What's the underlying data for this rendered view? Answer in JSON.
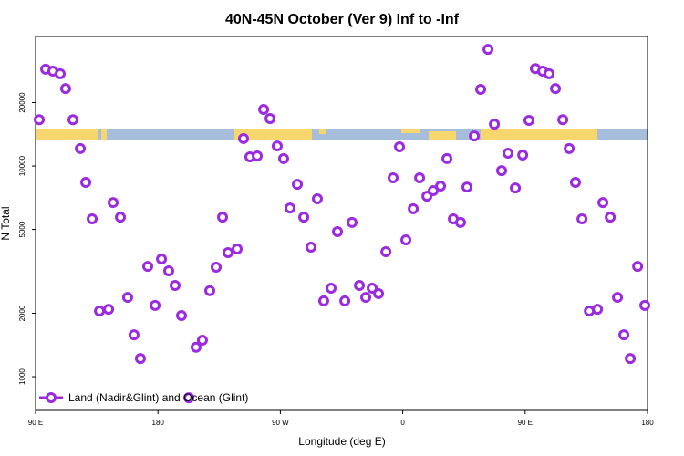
{
  "chart_data": {
    "type": "scatter",
    "title": "40N-45N October (Ver 9)   Inf to -Inf",
    "x_label": "Longitude (deg E)",
    "y_label": "N Total",
    "log_y": true,
    "xlim": [
      90,
      540
    ],
    "ylim": [
      692,
      41200
    ],
    "xticks": [
      {
        "value": 90,
        "label": "90 E"
      },
      {
        "value": 180,
        "label": "180"
      },
      {
        "value": 270,
        "label": "90 W"
      },
      {
        "value": 360,
        "label": "0"
      },
      {
        "value": 450,
        "label": "90 E"
      },
      {
        "value": 540,
        "label": "180"
      }
    ],
    "yticks": [
      1000,
      2000,
      5000,
      10000,
      20000
    ],
    "legend_position": "bottom-left",
    "series": [
      {
        "name": "Land (Nadir&Glint) and Ocean (Glint)",
        "color": "#9b2be0",
        "x": [
          92.7,
          97.4,
          102.7,
          108.1,
          112.1,
          117.5,
          122.9,
          126.9,
          131.6,
          137,
          143.7,
          147,
          152.4,
          157.7,
          162.4,
          167.1,
          172.5,
          177.9,
          182.6,
          187.9,
          192.6,
          197.3,
          202.7,
          208,
          212.7,
          218.1,
          222.8,
          227.5,
          231.5,
          238.2,
          242.9,
          247.6,
          253,
          257.7,
          262.4,
          267.7,
          272.4,
          277.1,
          282.5,
          287.2,
          292.5,
          297.2,
          301.9,
          307.3,
          312,
          317.4,
          322.7,
          328.1,
          332.8,
          337.5,
          342.2,
          347.6,
          352.9,
          357.6,
          362.3,
          367.7,
          372.4,
          377.8,
          382.4,
          387.8,
          392.5,
          397.2,
          402.5,
          407.2,
          412.6,
          417.3,
          422.7,
          427.4,
          432.7,
          437.4,
          442.8,
          448.2,
          452.8,
          457.5,
          462.9,
          467.6,
          472.3,
          477.7,
          482.4,
          487,
          491.8,
          497.2,
          503.2,
          507.2,
          512.6,
          517.9,
          522.6,
          527.3,
          532.7,
          538
        ],
        "values": [
          16600,
          28800,
          28200,
          27400,
          23300,
          16600,
          12100,
          8360,
          5610,
          2050,
          2090,
          6710,
          5720,
          2380,
          1580,
          1220,
          3340,
          2180,
          3620,
          3180,
          2710,
          1950,
          795,
          1380,
          1490,
          2560,
          3310,
          5720,
          3880,
          4040,
          13500,
          11050,
          11160,
          18550,
          16800,
          12450,
          10850,
          6320,
          8190,
          5720,
          4120,
          6990,
          2290,
          2630,
          4880,
          2290,
          5400,
          2710,
          2380,
          2630,
          2480,
          3920,
          8790,
          12330,
          4460,
          6270,
          8790,
          7190,
          7640,
          8030,
          10850,
          5610,
          5400,
          7950,
          13890,
          23100,
          35800,
          15800,
          9510,
          11500,
          7870,
          11270,
          16470,
          29000,
          28200,
          27400,
          23300,
          16600,
          12100,
          8360,
          5610,
          2050,
          2090,
          6710,
          5720,
          2380,
          1580,
          1220,
          3340,
          2180
        ]
      }
    ]
  }
}
